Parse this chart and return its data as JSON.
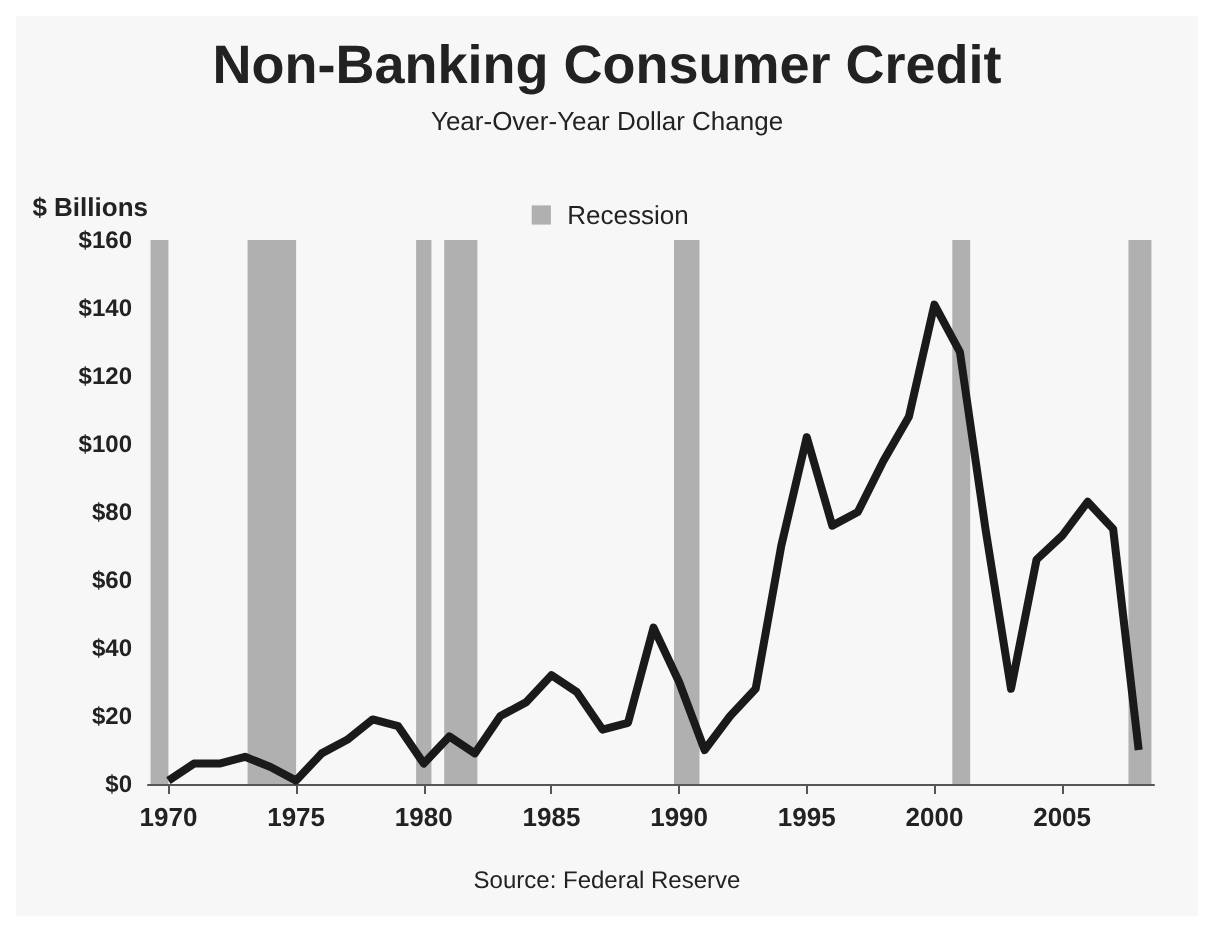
{
  "chart_data": {
    "type": "line",
    "title": "Non-Banking Consumer Credit",
    "subtitle": "Year-Over-Year Dollar Change",
    "ylabel": "$ Billions",
    "annotations": [
      "Source: Federal Reserve"
    ],
    "x": [
      1970,
      1971,
      1972,
      1973,
      1974,
      1975,
      1976,
      1977,
      1978,
      1979,
      1980,
      1981,
      1982,
      1983,
      1984,
      1985,
      1986,
      1987,
      1988,
      1989,
      1990,
      1991,
      1992,
      1993,
      1994,
      1995,
      1996,
      1997,
      1998,
      1999,
      2000,
      2001,
      2002,
      2003,
      2004,
      2005,
      2006,
      2007,
      2008
    ],
    "series": [
      {
        "color": "#1a1a1a",
        "values": [
          1,
          6,
          6,
          8,
          5,
          1,
          9,
          13,
          19,
          17,
          6,
          14,
          9,
          20,
          24,
          32,
          27,
          16,
          18,
          46,
          30,
          10,
          20,
          28,
          70,
          102,
          76,
          80,
          95,
          108,
          141,
          127,
          75,
          28,
          66,
          73,
          83,
          75,
          10
        ]
      }
    ],
    "xlim": [
      1969.2,
      2008.6
    ],
    "xticks": [
      1970,
      1975,
      1980,
      1985,
      1990,
      1995,
      2000,
      2005
    ],
    "ylim": [
      0,
      160
    ],
    "yticks": [
      {
        "value": 0,
        "label": "$0"
      },
      {
        "value": 20,
        "label": "$20"
      },
      {
        "value": 40,
        "label": "$40"
      },
      {
        "value": 60,
        "label": "$60"
      },
      {
        "value": 80,
        "label": "$80"
      },
      {
        "value": 100,
        "label": "$100"
      },
      {
        "value": 120,
        "label": "$120"
      },
      {
        "value": 140,
        "label": "$140"
      },
      {
        "value": 160,
        "label": "$160"
      }
    ],
    "bands": [
      {
        "axis": "x",
        "from": 1969.3,
        "to": 1970.0,
        "label": "Recession",
        "color": "#b0b0b0"
      },
      {
        "axis": "x",
        "from": 1973.1,
        "to": 1975.0,
        "color": "#b0b0b0"
      },
      {
        "axis": "x",
        "from": 1979.7,
        "to": 1980.3,
        "color": "#b0b0b0"
      },
      {
        "axis": "x",
        "from": 1980.8,
        "to": 1982.1,
        "color": "#b0b0b0"
      },
      {
        "axis": "x",
        "from": 1989.8,
        "to": 1990.8,
        "color": "#b0b0b0"
      },
      {
        "axis": "x",
        "from": 2000.7,
        "to": 2001.4,
        "color": "#b0b0b0"
      },
      {
        "axis": "x",
        "from": 2007.6,
        "to": 2008.5,
        "color": "#b0b0b0"
      }
    ],
    "grid": false,
    "legend": "top",
    "marker": "none",
    "line_style": "solid"
  }
}
